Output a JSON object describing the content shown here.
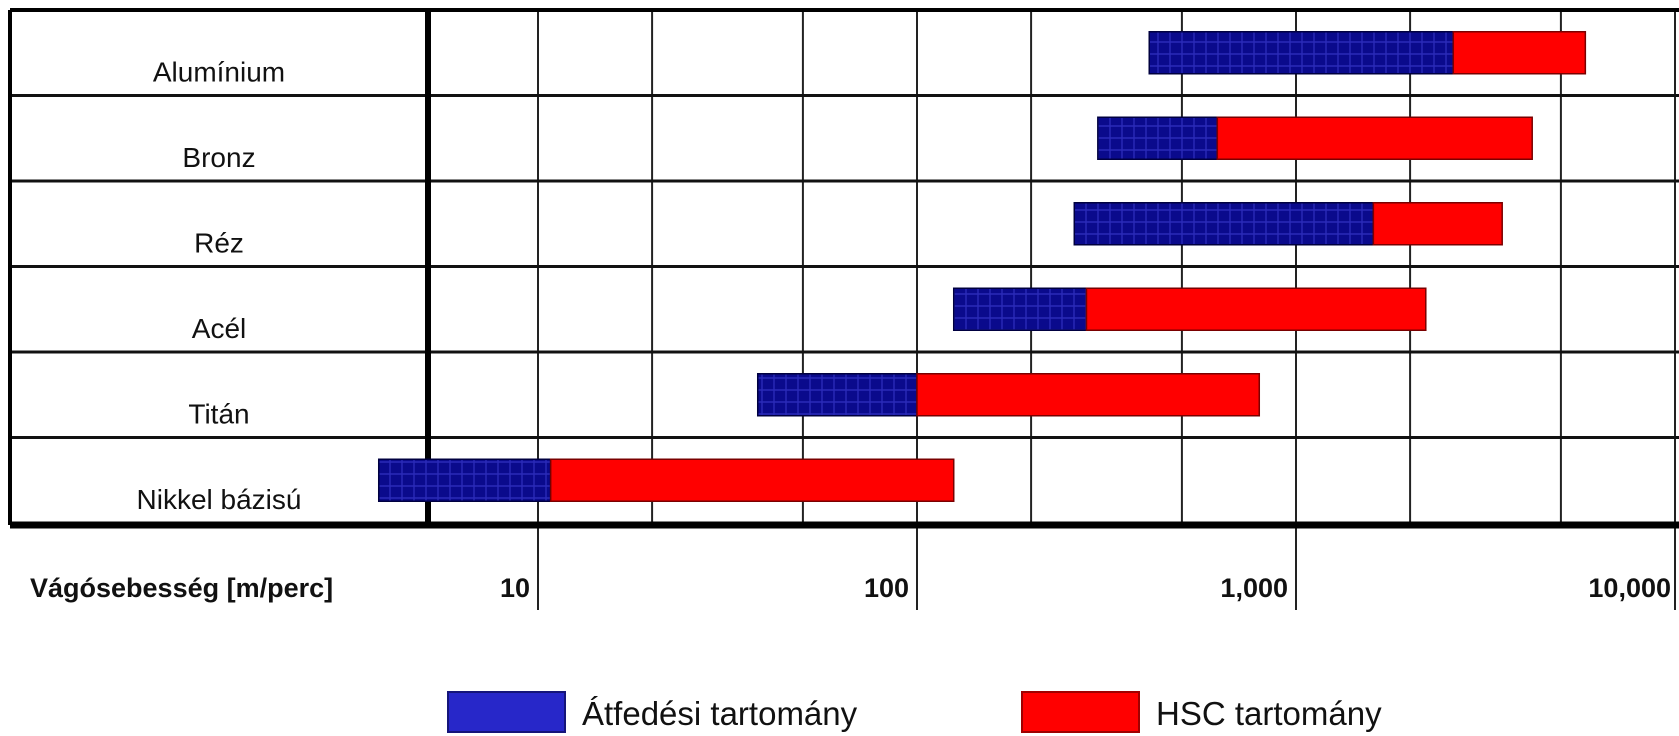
{
  "chart_data": {
    "type": "bar",
    "subtype": "floating-horizontal-range",
    "x_scale": "log",
    "xlabel": "Vágósebesség [m/perc]",
    "xlim": [
      3.3,
      10000
    ],
    "x_ticks": [
      {
        "value": 10,
        "label": "10"
      },
      {
        "value": 100,
        "label": "100"
      },
      {
        "value": 1000,
        "label": "1,000"
      },
      {
        "value": 10000,
        "label": "10,000"
      }
    ],
    "grid": true,
    "legend_position": "bottom",
    "categories": [
      "Alumínium",
      "Bronz",
      "Réz",
      "Acél",
      "Titán",
      "Nikkel bázisú"
    ],
    "series": [
      {
        "name": "Átfedési tartomány",
        "color": "#0a0a8c",
        "ranges": [
          [
            410,
            2600
          ],
          [
            300,
            620
          ],
          [
            260,
            1600
          ],
          [
            125,
            280
          ],
          [
            38,
            100
          ],
          [
            3.8,
            10.8
          ]
        ]
      },
      {
        "name": "HSC tartomány",
        "color": "#ff0000",
        "ranges": [
          [
            2600,
            5800
          ],
          [
            620,
            4200
          ],
          [
            1600,
            3500
          ],
          [
            280,
            2200
          ],
          [
            100,
            800
          ],
          [
            10.8,
            125
          ]
        ]
      }
    ]
  },
  "legend": {
    "overlap_label": "Átfedési tartomány",
    "hsc_label": "HSC tartomány"
  }
}
